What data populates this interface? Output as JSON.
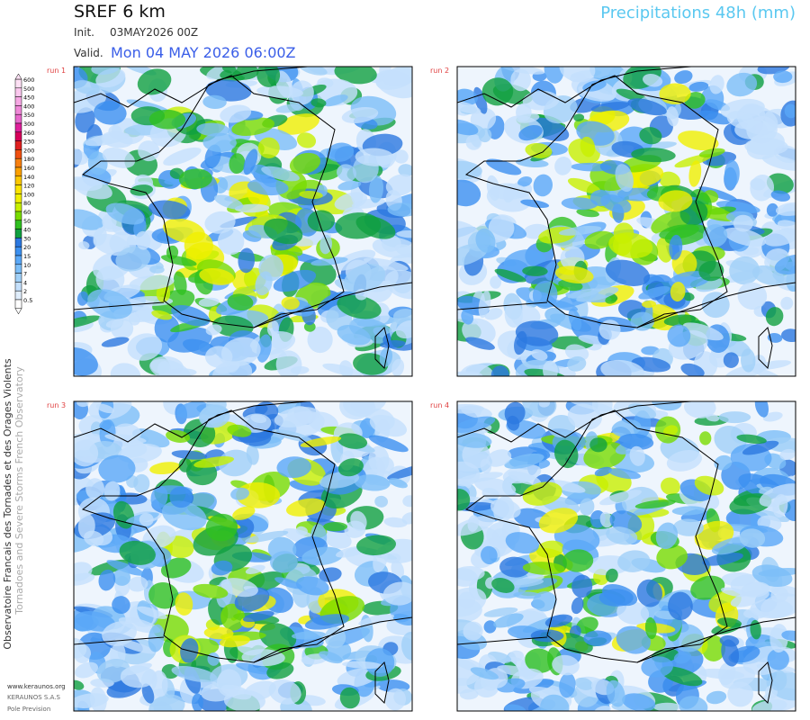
{
  "header": {
    "title": "SREF 6 km",
    "product": "Precipitations 48h (mm)",
    "init_label": "Init.",
    "init_value": "03MAY2026 00Z",
    "valid_label": "Valid.",
    "valid_value": "Mon 04 MAY 2026 06:00Z"
  },
  "legend": {
    "levels": [
      "600",
      "500",
      "450",
      "400",
      "350",
      "300",
      "260",
      "230",
      "200",
      "180",
      "160",
      "140",
      "120",
      "100",
      "80",
      "60",
      "50",
      "40",
      "30",
      "20",
      "15",
      "10",
      "7",
      "4",
      "2",
      "0.5"
    ],
    "colors": [
      "#fde0f4",
      "#fbc8ee",
      "#f7a8e4",
      "#f088d8",
      "#e868cc",
      "#e0209c",
      "#d8005a",
      "#e02020",
      "#f05010",
      "#f88010",
      "#fca000",
      "#fcc800",
      "#fce400",
      "#f0f000",
      "#c8f000",
      "#78dc00",
      "#30c020",
      "#10a040",
      "#2c78e0",
      "#3c90f0",
      "#5aa8f8",
      "#7cbef8",
      "#a0d0f8",
      "#c4e0fc",
      "#e0eefc",
      "#ffffff"
    ]
  },
  "panels": [
    {
      "label": "run 1"
    },
    {
      "label": "run 2"
    },
    {
      "label": "run 3"
    },
    {
      "label": "run 4"
    }
  ],
  "footer": {
    "org_fr": "Observatoire Francais des Tornades et des Orages Violents",
    "org_en": "Tornadoes and Severe Storms French Observatory",
    "website": "www.keraunos.org",
    "company": "KERAUNOS S.A.S",
    "department": "Pole Prevision"
  }
}
